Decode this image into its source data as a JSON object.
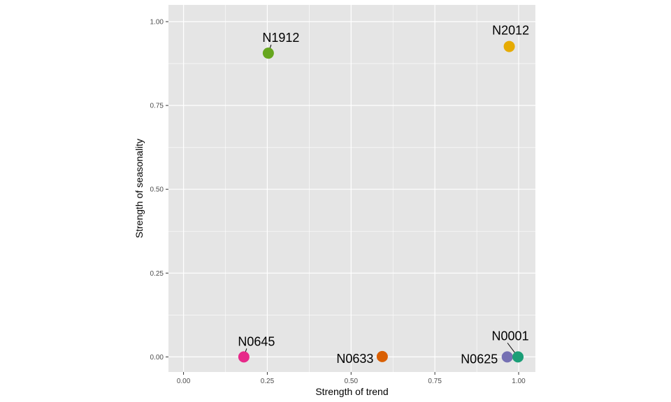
{
  "chart_data": {
    "type": "scatter",
    "xlabel": "Strength of trend",
    "ylabel": "Strength of seasonality",
    "xlim": [
      -0.045,
      1.05
    ],
    "ylim": [
      -0.045,
      1.05
    ],
    "x_ticks": [
      0.0,
      0.25,
      0.5,
      0.75,
      1.0
    ],
    "y_ticks": [
      0.0,
      0.25,
      0.5,
      0.75,
      1.0
    ],
    "x_tick_labels": [
      "0.00",
      "0.25",
      "0.50",
      "0.75",
      "1.00"
    ],
    "y_tick_labels": [
      "0.00",
      "0.25",
      "0.50",
      "0.75",
      "1.00"
    ],
    "grid": true,
    "background_color": "#E5E5E5",
    "grid_color": "#FFFFFF",
    "legend": "none",
    "points": [
      {
        "label": "N1912",
        "x": 0.253,
        "y": 0.906,
        "color": "#66A61E"
      },
      {
        "label": "N2012",
        "x": 0.972,
        "y": 0.926,
        "color": "#E6AB02"
      },
      {
        "label": "N0645",
        "x": 0.18,
        "y": 0.0,
        "color": "#E7298A"
      },
      {
        "label": "N0633",
        "x": 0.593,
        "y": 0.001,
        "color": "#D95F02"
      },
      {
        "label": "N0625",
        "x": 0.966,
        "y": 0.0,
        "color": "#7570B3"
      },
      {
        "label": "N0001",
        "x": 0.998,
        "y": 0.0,
        "color": "#1B9E77"
      }
    ]
  }
}
